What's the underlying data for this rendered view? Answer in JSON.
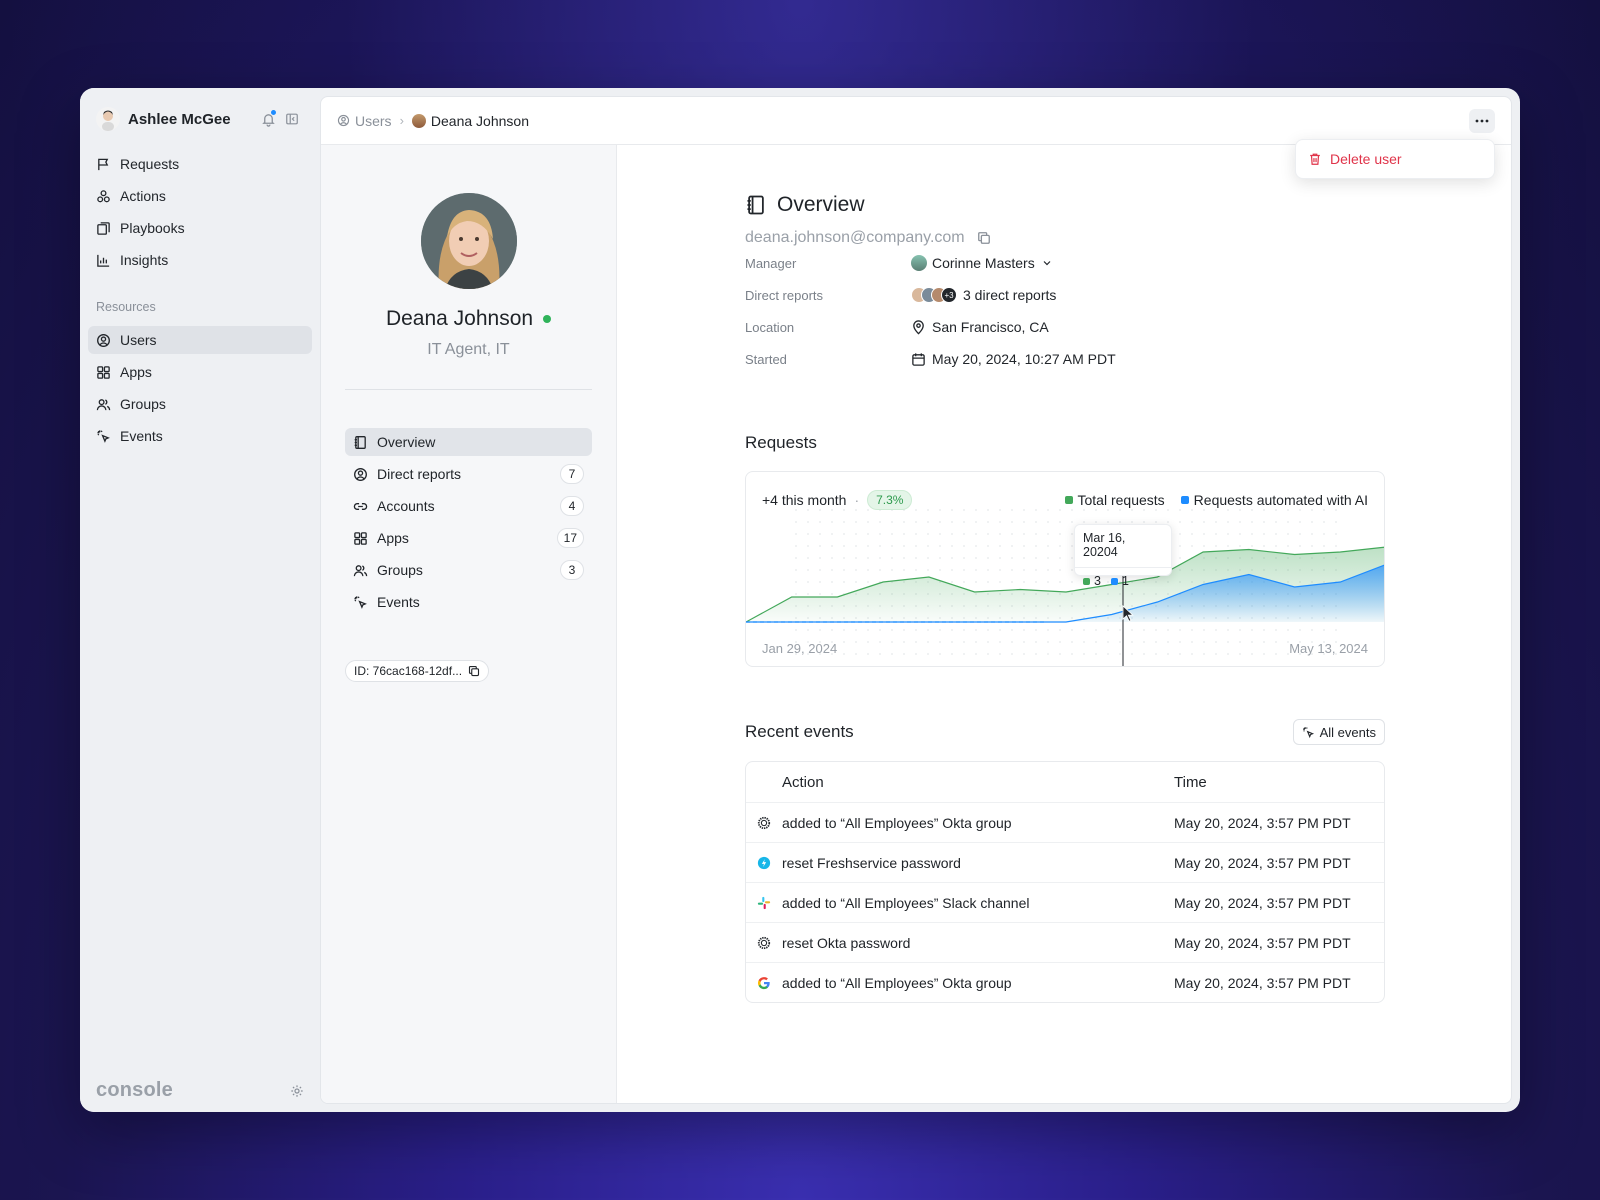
{
  "sidebar": {
    "user_name": "Ashlee McGee",
    "nav": [
      {
        "label": "Requests",
        "icon": "flag-icon"
      },
      {
        "label": "Actions",
        "icon": "actions-icon"
      },
      {
        "label": "Playbooks",
        "icon": "playbooks-icon"
      },
      {
        "label": "Insights",
        "icon": "chart-bar-icon"
      }
    ],
    "section_label": "Resources",
    "resources": [
      {
        "label": "Users",
        "icon": "user-circle-icon",
        "active": true
      },
      {
        "label": "Apps",
        "icon": "grid-icon"
      },
      {
        "label": "Groups",
        "icon": "users-icon"
      },
      {
        "label": "Events",
        "icon": "sparkle-cursor-icon"
      }
    ],
    "logo": "console"
  },
  "breadcrumb": {
    "root": "Users",
    "current": "Deana Johnson"
  },
  "menu": {
    "delete_label": "Delete user"
  },
  "profile": {
    "name": "Deana Johnson",
    "role": "IT Agent, IT",
    "nav": [
      {
        "label": "Overview",
        "count": null,
        "active": true
      },
      {
        "label": "Direct reports",
        "count": "7"
      },
      {
        "label": "Accounts",
        "count": "4"
      },
      {
        "label": "Apps",
        "count": "17"
      },
      {
        "label": "Groups",
        "count": "3"
      },
      {
        "label": "Events",
        "count": null
      }
    ],
    "id_chip": "ID: 76cac168-12df..."
  },
  "overview": {
    "title": "Overview",
    "email": "deana.johnson@company.com",
    "fields": {
      "manager_label": "Manager",
      "manager_value": "Corinne Masters",
      "reports_label": "Direct reports",
      "reports_value": "3 direct reports",
      "reports_more": "+3",
      "location_label": "Location",
      "location_value": "San Francisco, CA",
      "started_label": "Started",
      "started_value": "May 20, 2024, 10:27 AM PDT"
    }
  },
  "requests": {
    "title": "Requests",
    "summary": "+4 this month",
    "pct": "7.3%",
    "tooltip": {
      "date": "Mar 16, 20204",
      "total": "3",
      "automated": "1"
    },
    "x_start": "Jan 29, 2024",
    "x_end": "May 13, 2024"
  },
  "chart_data": {
    "type": "area",
    "x": [
      "Jan 29, 2024",
      "",
      "",
      "",
      "",
      "",
      "",
      "",
      "",
      "",
      "",
      "",
      "",
      "",
      "May 13, 2024"
    ],
    "series": [
      {
        "name": "Total requests",
        "color": "#43a85a",
        "values": [
          0,
          1,
          1,
          1.6,
          1.8,
          1.2,
          1.3,
          1.2,
          1.5,
          1.8,
          2.8,
          2.9,
          2.7,
          2.8,
          3.0
        ]
      },
      {
        "name": "Requests automated with AI",
        "color": "#1e8cff",
        "values": [
          0,
          0,
          0,
          0,
          0,
          0,
          0,
          0,
          0.3,
          0.8,
          1.5,
          1.9,
          1.4,
          1.6,
          2.3
        ]
      }
    ],
    "ylim": [
      0,
      3.2
    ],
    "legend": "top-right"
  },
  "events": {
    "title": "Recent events",
    "all_label": "All events",
    "col_action": "Action",
    "col_time": "Time",
    "rows": [
      {
        "icon": "okta-icon",
        "action": "added to “All Employees” Okta group",
        "time": "May 20, 2024, 3:57 PM PDT"
      },
      {
        "icon": "freshservice-icon",
        "action": "reset Freshservice password",
        "time": "May 20, 2024, 3:57 PM PDT"
      },
      {
        "icon": "slack-icon",
        "action": "added to “All Employees” Slack channel",
        "time": "May 20, 2024, 3:57 PM PDT"
      },
      {
        "icon": "okta-icon",
        "action": "reset Okta password",
        "time": "May 20, 2024, 3:57 PM PDT"
      },
      {
        "icon": "google-icon",
        "action": "added to “All Employees” Okta group",
        "time": "May 20, 2024, 3:57 PM PDT"
      }
    ]
  }
}
